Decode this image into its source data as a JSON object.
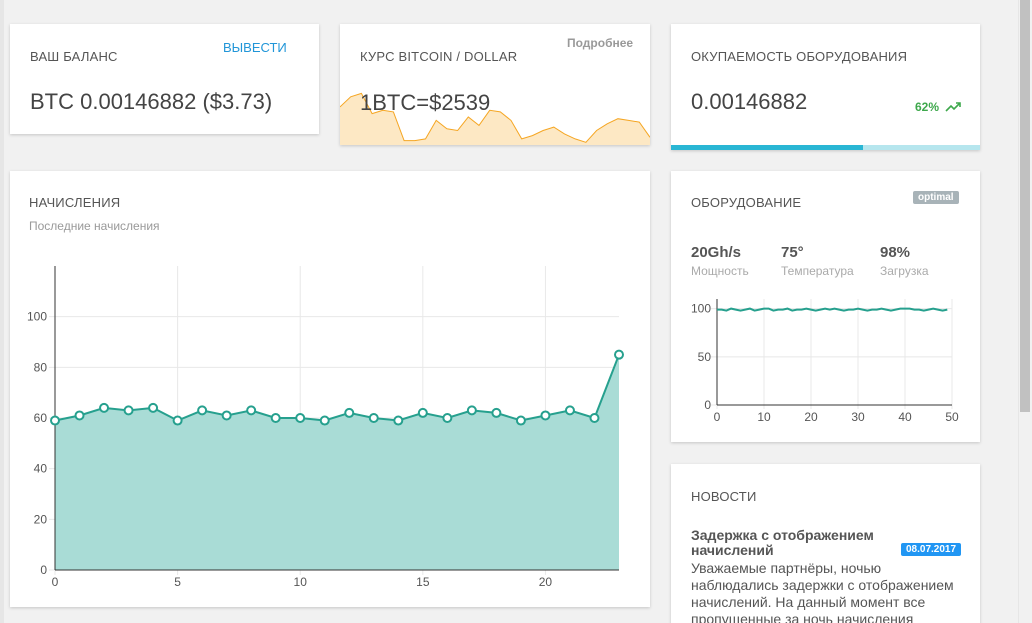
{
  "balance": {
    "title": "ВАШ БАЛАНС",
    "withdraw_label": "ВЫВЕСТИ",
    "value": "BTC 0.00146882 ($3.73)"
  },
  "rate": {
    "title": "КУРС BITCOIN / DOLLAR",
    "more_label": "Подробнее",
    "value": "1BTC=$2539",
    "sparkline": [
      22,
      28,
      30,
      18,
      20,
      19,
      2,
      2,
      3,
      14,
      9,
      8,
      16,
      11,
      20,
      19,
      14,
      3,
      5,
      8,
      10,
      6,
      3,
      1,
      8,
      12,
      15,
      14,
      13,
      4
    ],
    "color": "#f5a623"
  },
  "payback": {
    "title": "ОКУПАЕМОСТЬ ОБОРУДОВАНИЯ",
    "value": "0.00146882",
    "percent": "62%",
    "progress": 0.62,
    "bar_color": "#29b6d4"
  },
  "accruals": {
    "title": "НАЧИСЛЕНИЯ",
    "subtitle": "Последние начисления",
    "chart_data": {
      "type": "area",
      "x": [
        0,
        1,
        2,
        3,
        4,
        5,
        6,
        7,
        8,
        9,
        10,
        11,
        12,
        13,
        14,
        15,
        16,
        17,
        18,
        19,
        20,
        21,
        22,
        23
      ],
      "values": [
        59,
        61,
        64,
        63,
        64,
        59,
        63,
        61,
        63,
        60,
        60,
        59,
        62,
        60,
        59,
        62,
        60,
        63,
        62,
        59,
        61,
        63,
        60,
        85
      ],
      "xticks": [
        "0",
        "5",
        "10",
        "15",
        "20"
      ],
      "xtick_values": [
        0,
        5,
        10,
        15,
        20
      ],
      "yticks": [
        "0",
        "20",
        "40",
        "60",
        "80",
        "100"
      ],
      "ytick_values": [
        0,
        20,
        40,
        60,
        80,
        100
      ],
      "xlim": [
        0,
        23
      ],
      "ylim": [
        0,
        120
      ],
      "grid": true,
      "color": "#26a08e",
      "fill": "#a9dcd6"
    }
  },
  "equipment": {
    "title": "ОБОРУДОВАНИЕ",
    "badge": "optimal",
    "stats": [
      {
        "value": "20Gh/s",
        "label": "Мощность"
      },
      {
        "value": "75°",
        "label": "Температура"
      },
      {
        "value": "98%",
        "label": "Загрузка"
      }
    ],
    "chart_data": {
      "type": "line",
      "x_count": 50,
      "values": [
        99,
        99,
        98,
        100,
        99,
        98,
        99,
        100,
        98,
        99,
        100,
        100,
        98,
        99,
        99,
        100,
        98,
        99,
        99,
        100,
        99,
        98,
        99,
        100,
        99,
        100,
        99,
        98,
        99,
        99,
        100,
        99,
        98,
        99,
        99,
        100,
        99,
        98,
        99,
        100,
        100,
        100,
        99,
        99,
        98,
        99,
        100,
        99,
        98,
        99
      ],
      "xticks": [
        "0",
        "10",
        "20",
        "30",
        "40",
        "50"
      ],
      "xtick_values": [
        0,
        10,
        20,
        30,
        40,
        50
      ],
      "yticks": [
        "0",
        "50",
        "100"
      ],
      "ytick_values": [
        0,
        50,
        100
      ],
      "xlim": [
        0,
        50
      ],
      "ylim": [
        0,
        110
      ],
      "grid": true,
      "color": "#26a08e"
    }
  },
  "news": {
    "title": "НОВОСТИ",
    "item_title": "Задержка с отображением начислений",
    "date": "08.07.2017",
    "item_body": "Уважаемые партнёры, ночью наблюдались задержки с отображением начислений. На данный момент все пропущенные за ночь начисления"
  }
}
